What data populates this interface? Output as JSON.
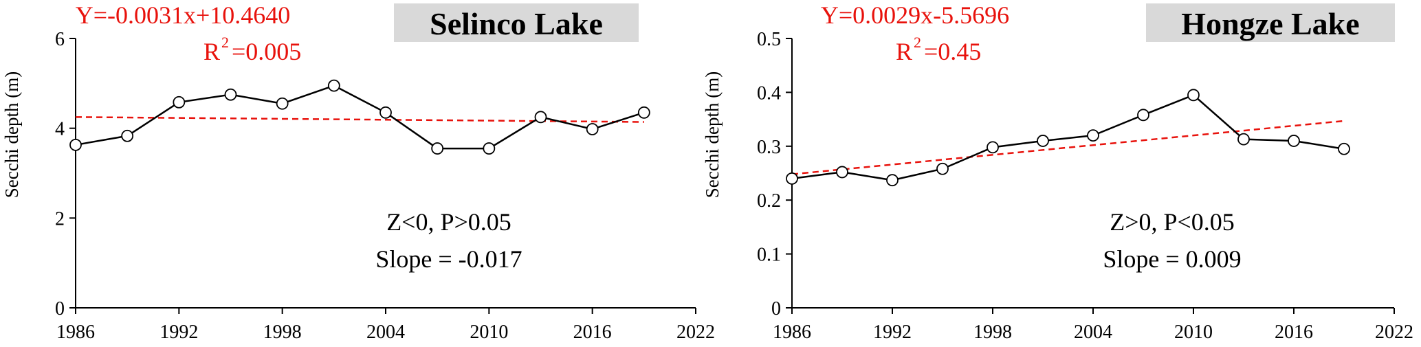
{
  "chart_data": [
    {
      "type": "line",
      "title": "Selinco Lake",
      "xlabel": "",
      "ylabel": "Secchi depth (m)",
      "xlim": [
        1986,
        2022
      ],
      "ylim": [
        0,
        6
      ],
      "x_ticks": [
        "1986",
        "1992",
        "1998",
        "2004",
        "2010",
        "2016",
        "2022"
      ],
      "y_ticks": [
        "0",
        "2",
        "4",
        "6"
      ],
      "grid": false,
      "series": [
        {
          "x": [
            1986,
            1989,
            1992,
            1995,
            1998,
            2001,
            2004,
            2007,
            2010,
            2013,
            2016,
            2019
          ],
          "y": [
            3.63,
            3.83,
            4.58,
            4.75,
            4.55,
            4.95,
            4.35,
            3.55,
            3.55,
            4.25,
            3.98,
            4.35
          ]
        }
      ],
      "trend": {
        "start": [
          1986,
          4.25
        ],
        "end": [
          2019,
          4.14
        ]
      },
      "equation": "Y=-0.0031x+10.4640",
      "r2_prefix": "R",
      "r2_sup": "2",
      "r2_value": "=0.005",
      "test_result": "Z<0, P>0.05",
      "slope_text": "Slope = -0.017"
    },
    {
      "type": "line",
      "title": "Hongze Lake",
      "xlabel": "",
      "ylabel": "Secchi depth (m)",
      "xlim": [
        1986,
        2022
      ],
      "ylim": [
        0,
        0.5
      ],
      "x_ticks": [
        "1986",
        "1992",
        "1998",
        "2004",
        "2010",
        "2016",
        "2022"
      ],
      "y_ticks": [
        "0",
        "0.1",
        "0.2",
        "0.3",
        "0.4",
        "0.5"
      ],
      "grid": false,
      "series": [
        {
          "x": [
            1986,
            1989,
            1992,
            1995,
            1998,
            2001,
            2004,
            2007,
            2010,
            2013,
            2016,
            2019
          ],
          "y": [
            0.24,
            0.252,
            0.237,
            0.258,
            0.298,
            0.31,
            0.32,
            0.358,
            0.395,
            0.313,
            0.31,
            0.295
          ]
        }
      ],
      "trend": {
        "start": [
          1986,
          0.248
        ],
        "end": [
          2019,
          0.347
        ]
      },
      "equation": "Y=0.0029x-5.5696",
      "r2_prefix": "R",
      "r2_sup": "2",
      "r2_value": "=0.45",
      "test_result": "Z>0, P<0.05",
      "slope_text": "Slope = 0.009"
    }
  ],
  "colors": {
    "line": "#000000",
    "trend": "#e8120c",
    "equation": "#e8120c",
    "title_box": "#d9d9d9"
  }
}
